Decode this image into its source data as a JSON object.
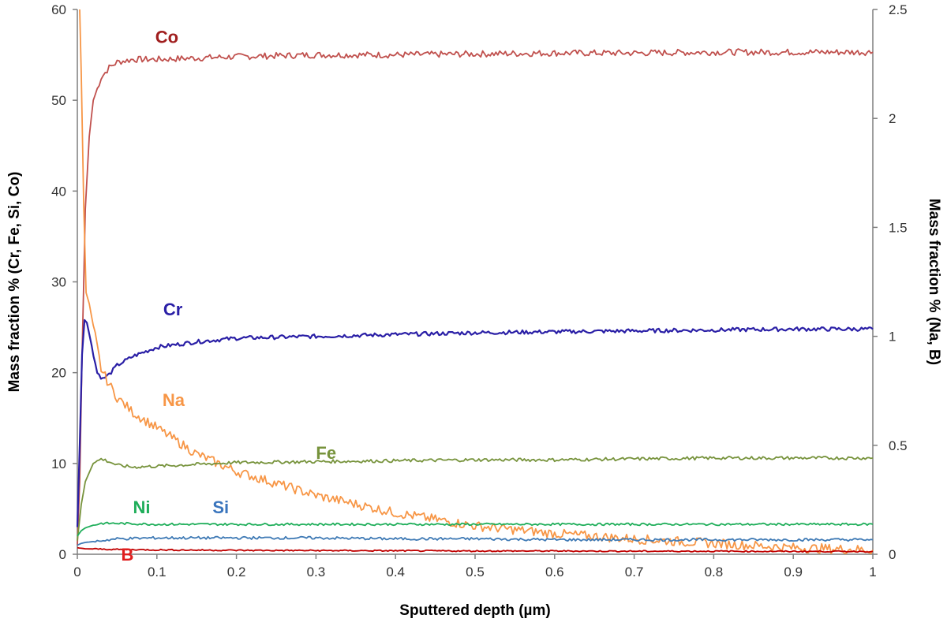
{
  "chart_data": {
    "type": "line",
    "title": "",
    "xlabel": "Sputtered depth (µm)",
    "ylabel_left": "Mass fraction % (Cr, Fe, Si, Co)",
    "ylabel_right": "Mass fraction % (Na, B)",
    "xlim": [
      0,
      1
    ],
    "ylim_left": [
      0,
      60
    ],
    "ylim_right": [
      0,
      2.5
    ],
    "grid": false,
    "legend": "inline labels",
    "x_ticks": [
      "0",
      "0.1",
      "0.2",
      "0.3",
      "0.4",
      "0.5",
      "0.6",
      "0.7",
      "0.8",
      "0.9",
      "1"
    ],
    "y_ticks_left": [
      "0",
      "10",
      "20",
      "30",
      "40",
      "50",
      "60"
    ],
    "y_ticks_right": [
      "0",
      "0.5",
      "1",
      "1.5",
      "2",
      "2.5"
    ],
    "series": [
      {
        "name": "Co",
        "axis": "left",
        "color": "#c0504d",
        "label_color": "#a01e1e",
        "label_x": 0.098,
        "label_y": 57,
        "x": [
          0,
          0.003,
          0.006,
          0.01,
          0.015,
          0.02,
          0.03,
          0.04,
          0.05,
          0.07,
          0.1,
          0.2,
          0.3,
          0.4,
          0.5,
          0.6,
          0.7,
          0.8,
          0.9,
          1.0
        ],
        "y": [
          1,
          8,
          22,
          38,
          46,
          50,
          52.5,
          53.6,
          54.2,
          54.5,
          54.5,
          54.8,
          55,
          55,
          55.1,
          55.2,
          55.2,
          55.3,
          55.3,
          55.3
        ]
      },
      {
        "name": "Cr",
        "axis": "left",
        "color": "#2a1fa6",
        "label_color": "#2a1fa6",
        "label_x": 0.108,
        "label_y": 27,
        "x": [
          0,
          0.003,
          0.006,
          0.009,
          0.012,
          0.018,
          0.025,
          0.032,
          0.04,
          0.05,
          0.07,
          0.1,
          0.15,
          0.2,
          0.3,
          0.4,
          0.5,
          0.6,
          0.7,
          0.8,
          0.9,
          1.0
        ],
        "y": [
          3,
          12,
          22,
          25.8,
          25.5,
          23,
          20,
          19.3,
          19.8,
          20.8,
          21.8,
          22.8,
          23.4,
          23.8,
          24,
          24.2,
          24.4,
          24.5,
          24.6,
          24.7,
          24.8,
          24.8
        ]
      },
      {
        "name": "Na",
        "axis": "right",
        "color": "#f79646",
        "label_color": "#f79646",
        "label_x": 0.107,
        "label_y": 0.71,
        "x": [
          0.003,
          0.005,
          0.008,
          0.011,
          0.015,
          0.02,
          0.025,
          0.03,
          0.04,
          0.05,
          0.07,
          0.1,
          0.15,
          0.2,
          0.3,
          0.4,
          0.5,
          0.6,
          0.7,
          0.8,
          0.9,
          1.0
        ],
        "y": [
          2.5,
          2.2,
          1.6,
          1.2,
          1.15,
          1.05,
          0.95,
          0.85,
          0.78,
          0.72,
          0.65,
          0.58,
          0.46,
          0.38,
          0.27,
          0.19,
          0.13,
          0.095,
          0.07,
          0.05,
          0.03,
          0.02
        ]
      },
      {
        "name": "Fe",
        "axis": "left",
        "color": "#77933c",
        "label_color": "#77933c",
        "label_x": 0.3,
        "label_y": 11.2,
        "x": [
          0,
          0.005,
          0.01,
          0.02,
          0.03,
          0.04,
          0.05,
          0.07,
          0.1,
          0.15,
          0.2,
          0.3,
          0.4,
          0.5,
          0.6,
          0.7,
          0.8,
          0.9,
          1.0
        ],
        "y": [
          1.5,
          5.5,
          8,
          10,
          10.5,
          10.2,
          9.8,
          9.6,
          9.7,
          9.9,
          10.1,
          10.2,
          10.3,
          10.4,
          10.4,
          10.5,
          10.6,
          10.6,
          10.6
        ]
      },
      {
        "name": "Ni",
        "axis": "left",
        "color": "#1fae5a",
        "label_color": "#1fae5a",
        "label_x": 0.07,
        "label_y": 5.2,
        "x": [
          0,
          0.005,
          0.01,
          0.02,
          0.03,
          0.05,
          0.1,
          0.2,
          0.3,
          0.4,
          0.5,
          0.6,
          0.7,
          0.8,
          0.9,
          1.0
        ],
        "y": [
          2,
          2.6,
          2.9,
          3.2,
          3.4,
          3.4,
          3.3,
          3.3,
          3.3,
          3.3,
          3.3,
          3.3,
          3.3,
          3.3,
          3.3,
          3.3
        ]
      },
      {
        "name": "Si",
        "axis": "left",
        "color": "#3f7ab5",
        "label_color": "#3a75bd",
        "label_x": 0.17,
        "label_y": 5.2,
        "x": [
          0,
          0.005,
          0.01,
          0.02,
          0.03,
          0.05,
          0.1,
          0.2,
          0.3,
          0.4,
          0.5,
          0.6,
          0.7,
          0.8,
          0.9,
          1.0
        ],
        "y": [
          1,
          1.2,
          1.3,
          1.4,
          1.5,
          1.7,
          1.8,
          1.8,
          1.8,
          1.7,
          1.7,
          1.6,
          1.6,
          1.6,
          1.6,
          1.6
        ]
      },
      {
        "name": "B",
        "axis": "right",
        "color": "#c00000",
        "label_color": "#e01e1e",
        "label_x": 0.055,
        "label_y": 0.0,
        "x": [
          0,
          0.01,
          0.05,
          0.1,
          0.2,
          0.3,
          0.4,
          0.5,
          0.6,
          0.7,
          0.8,
          0.9,
          1.0
        ],
        "y": [
          0.03,
          0.025,
          0.022,
          0.02,
          0.018,
          0.017,
          0.016,
          0.015,
          0.015,
          0.014,
          0.014,
          0.013,
          0.013
        ]
      }
    ]
  }
}
